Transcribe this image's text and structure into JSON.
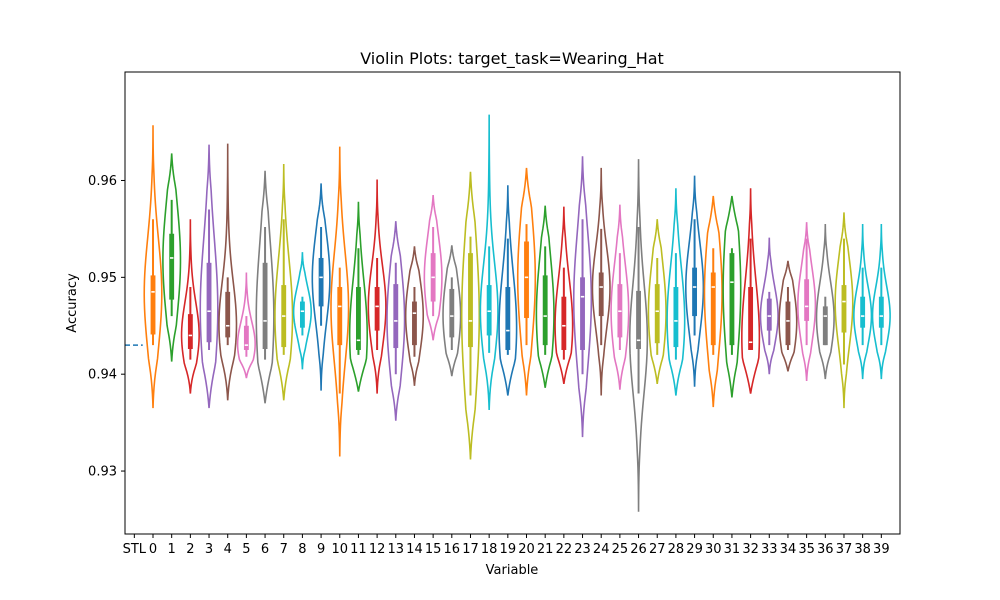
{
  "chart_data": {
    "type": "violin",
    "title": "Violin Plots: target_task=Wearing_Hat",
    "xlabel": "Variable",
    "ylabel": "Accuracy",
    "ylim": [
      0.9235,
      0.9712
    ],
    "yticks": [
      0.93,
      0.94,
      0.95,
      0.96
    ],
    "ytick_labels": [
      "0.93",
      "0.94",
      "0.95",
      "0.96"
    ],
    "grid": false,
    "baseline": {
      "label": "STL",
      "value": 0.943,
      "style": "dashed",
      "color": "#1f77b4"
    },
    "categories": [
      "STL",
      "0",
      "1",
      "2",
      "3",
      "4",
      "5",
      "6",
      "7",
      "8",
      "9",
      "10",
      "11",
      "12",
      "13",
      "14",
      "15",
      "16",
      "17",
      "18",
      "19",
      "20",
      "21",
      "22",
      "23",
      "24",
      "25",
      "26",
      "27",
      "28",
      "29",
      "30",
      "31",
      "32",
      "33",
      "34",
      "35",
      "36",
      "37",
      "38",
      "39"
    ],
    "palette": [
      "#ff7f0e",
      "#2ca02c",
      "#d62728",
      "#9467bd",
      "#8c564b",
      "#e377c2",
      "#7f7f7f",
      "#bcbd22",
      "#17becf",
      "#1f77b4"
    ],
    "series": [
      {
        "label": "0",
        "min": 0.9365,
        "max": 0.9657,
        "q1": 0.9441,
        "median": 0.9485,
        "q3": 0.9502,
        "w_low": 0.943,
        "w_high": 0.956,
        "color": "#ff7f0e"
      },
      {
        "label": "1",
        "min": 0.9413,
        "max": 0.9628,
        "q1": 0.9477,
        "median": 0.952,
        "q3": 0.9545,
        "w_low": 0.946,
        "w_high": 0.958,
        "color": "#2ca02c"
      },
      {
        "label": "2",
        "min": 0.938,
        "max": 0.956,
        "q1": 0.9426,
        "median": 0.944,
        "q3": 0.9462,
        "w_low": 0.9415,
        "w_high": 0.949,
        "color": "#d62728"
      },
      {
        "label": "3",
        "min": 0.9365,
        "max": 0.9637,
        "q1": 0.9433,
        "median": 0.9465,
        "q3": 0.9515,
        "w_low": 0.9425,
        "w_high": 0.957,
        "color": "#9467bd"
      },
      {
        "label": "4",
        "min": 0.9373,
        "max": 0.9638,
        "q1": 0.9438,
        "median": 0.945,
        "q3": 0.9485,
        "w_low": 0.943,
        "w_high": 0.95,
        "color": "#8c564b"
      },
      {
        "label": "5",
        "min": 0.9396,
        "max": 0.9505,
        "q1": 0.9425,
        "median": 0.943,
        "q3": 0.945,
        "w_low": 0.9418,
        "w_high": 0.946,
        "color": "#e377c2"
      },
      {
        "label": "6",
        "min": 0.937,
        "max": 0.961,
        "q1": 0.9426,
        "median": 0.9455,
        "q3": 0.9515,
        "w_low": 0.9415,
        "w_high": 0.9552,
        "color": "#7f7f7f"
      },
      {
        "label": "7",
        "min": 0.9373,
        "max": 0.9617,
        "q1": 0.9428,
        "median": 0.946,
        "q3": 0.9492,
        "w_low": 0.942,
        "w_high": 0.956,
        "color": "#bcbd22"
      },
      {
        "label": "8",
        "min": 0.9405,
        "max": 0.9526,
        "q1": 0.9448,
        "median": 0.9465,
        "q3": 0.9475,
        "w_low": 0.944,
        "w_high": 0.948,
        "color": "#17becf"
      },
      {
        "label": "9",
        "min": 0.9383,
        "max": 0.9597,
        "q1": 0.947,
        "median": 0.95,
        "q3": 0.952,
        "w_low": 0.945,
        "w_high": 0.9552,
        "color": "#1f77b4"
      },
      {
        "label": "10",
        "min": 0.9315,
        "max": 0.9635,
        "q1": 0.943,
        "median": 0.947,
        "q3": 0.949,
        "w_low": 0.938,
        "w_high": 0.951,
        "color": "#ff7f0e"
      },
      {
        "label": "11",
        "min": 0.9382,
        "max": 0.9578,
        "q1": 0.9425,
        "median": 0.9435,
        "q3": 0.949,
        "w_low": 0.942,
        "w_high": 0.953,
        "color": "#2ca02c"
      },
      {
        "label": "12",
        "min": 0.938,
        "max": 0.9601,
        "q1": 0.9445,
        "median": 0.947,
        "q3": 0.949,
        "w_low": 0.9425,
        "w_high": 0.952,
        "color": "#d62728"
      },
      {
        "label": "13",
        "min": 0.9352,
        "max": 0.9558,
        "q1": 0.9427,
        "median": 0.9455,
        "q3": 0.9493,
        "w_low": 0.94,
        "w_high": 0.9515,
        "color": "#9467bd"
      },
      {
        "label": "14",
        "min": 0.9388,
        "max": 0.9532,
        "q1": 0.943,
        "median": 0.9463,
        "q3": 0.9475,
        "w_low": 0.9418,
        "w_high": 0.949,
        "color": "#8c564b"
      },
      {
        "label": "15",
        "min": 0.9435,
        "max": 0.9585,
        "q1": 0.9475,
        "median": 0.95,
        "q3": 0.9525,
        "w_low": 0.946,
        "w_high": 0.9552,
        "color": "#e377c2"
      },
      {
        "label": "16",
        "min": 0.9398,
        "max": 0.9533,
        "q1": 0.9438,
        "median": 0.946,
        "q3": 0.9488,
        "w_low": 0.9425,
        "w_high": 0.95,
        "color": "#7f7f7f"
      },
      {
        "label": "17",
        "min": 0.9312,
        "max": 0.9609,
        "q1": 0.9428,
        "median": 0.9455,
        "q3": 0.9525,
        "w_low": 0.9378,
        "w_high": 0.9542,
        "color": "#bcbd22"
      },
      {
        "label": "18",
        "min": 0.9363,
        "max": 0.9668,
        "q1": 0.944,
        "median": 0.9465,
        "q3": 0.9492,
        "w_low": 0.9422,
        "w_high": 0.9532,
        "color": "#17becf"
      },
      {
        "label": "19",
        "min": 0.9378,
        "max": 0.9595,
        "q1": 0.9425,
        "median": 0.9445,
        "q3": 0.949,
        "w_low": 0.942,
        "w_high": 0.954,
        "color": "#1f77b4"
      },
      {
        "label": "20",
        "min": 0.9378,
        "max": 0.9613,
        "q1": 0.9458,
        "median": 0.95,
        "q3": 0.9537,
        "w_low": 0.943,
        "w_high": 0.9555,
        "color": "#ff7f0e"
      },
      {
        "label": "21",
        "min": 0.9386,
        "max": 0.9574,
        "q1": 0.943,
        "median": 0.946,
        "q3": 0.9502,
        "w_low": 0.942,
        "w_high": 0.9532,
        "color": "#2ca02c"
      },
      {
        "label": "22",
        "min": 0.939,
        "max": 0.9573,
        "q1": 0.9425,
        "median": 0.945,
        "q3": 0.948,
        "w_low": 0.9415,
        "w_high": 0.951,
        "color": "#d62728"
      },
      {
        "label": "23",
        "min": 0.9335,
        "max": 0.9625,
        "q1": 0.9425,
        "median": 0.948,
        "q3": 0.95,
        "w_low": 0.94,
        "w_high": 0.956,
        "color": "#9467bd"
      },
      {
        "label": "24",
        "min": 0.9378,
        "max": 0.9613,
        "q1": 0.946,
        "median": 0.949,
        "q3": 0.9505,
        "w_low": 0.943,
        "w_high": 0.955,
        "color": "#8c564b"
      },
      {
        "label": "25",
        "min": 0.9384,
        "max": 0.9575,
        "q1": 0.9438,
        "median": 0.9465,
        "q3": 0.9493,
        "w_low": 0.9425,
        "w_high": 0.9525,
        "color": "#e377c2"
      },
      {
        "label": "26",
        "min": 0.9258,
        "max": 0.9622,
        "q1": 0.9426,
        "median": 0.9435,
        "q3": 0.9486,
        "w_low": 0.938,
        "w_high": 0.9552,
        "color": "#7f7f7f"
      },
      {
        "label": "27",
        "min": 0.939,
        "max": 0.956,
        "q1": 0.9432,
        "median": 0.9465,
        "q3": 0.9493,
        "w_low": 0.942,
        "w_high": 0.952,
        "color": "#bcbd22"
      },
      {
        "label": "28",
        "min": 0.9378,
        "max": 0.9592,
        "q1": 0.9428,
        "median": 0.9455,
        "q3": 0.949,
        "w_low": 0.9415,
        "w_high": 0.9525,
        "color": "#17becf"
      },
      {
        "label": "29",
        "min": 0.9387,
        "max": 0.9605,
        "q1": 0.946,
        "median": 0.949,
        "q3": 0.951,
        "w_low": 0.944,
        "w_high": 0.956,
        "color": "#1f77b4"
      },
      {
        "label": "30",
        "min": 0.9366,
        "max": 0.9584,
        "q1": 0.943,
        "median": 0.949,
        "q3": 0.9505,
        "w_low": 0.942,
        "w_high": 0.953,
        "color": "#ff7f0e"
      },
      {
        "label": "31",
        "min": 0.9376,
        "max": 0.9584,
        "q1": 0.943,
        "median": 0.9495,
        "q3": 0.9525,
        "w_low": 0.942,
        "w_high": 0.953,
        "color": "#2ca02c"
      },
      {
        "label": "32",
        "min": 0.938,
        "max": 0.9592,
        "q1": 0.9425,
        "median": 0.9433,
        "q3": 0.949,
        "w_low": 0.9425,
        "w_high": 0.954,
        "color": "#d62728"
      },
      {
        "label": "33",
        "min": 0.94,
        "max": 0.9541,
        "q1": 0.9445,
        "median": 0.946,
        "q3": 0.9478,
        "w_low": 0.943,
        "w_high": 0.9485,
        "color": "#9467bd"
      },
      {
        "label": "34",
        "min": 0.9403,
        "max": 0.9517,
        "q1": 0.943,
        "median": 0.9455,
        "q3": 0.9475,
        "w_low": 0.9425,
        "w_high": 0.949,
        "color": "#8c564b"
      },
      {
        "label": "35",
        "min": 0.9393,
        "max": 0.9557,
        "q1": 0.9455,
        "median": 0.947,
        "q3": 0.9498,
        "w_low": 0.943,
        "w_high": 0.954,
        "color": "#e377c2"
      },
      {
        "label": "36",
        "min": 0.9395,
        "max": 0.9555,
        "q1": 0.943,
        "median": 0.946,
        "q3": 0.947,
        "w_low": 0.943,
        "w_high": 0.948,
        "color": "#7f7f7f"
      },
      {
        "label": "37",
        "min": 0.9365,
        "max": 0.9567,
        "q1": 0.9443,
        "median": 0.9475,
        "q3": 0.9492,
        "w_low": 0.941,
        "w_high": 0.954,
        "color": "#bcbd22"
      },
      {
        "label": "38",
        "min": 0.9395,
        "max": 0.9555,
        "q1": 0.9448,
        "median": 0.946,
        "q3": 0.948,
        "w_low": 0.943,
        "w_high": 0.951,
        "color": "#17becf"
      },
      {
        "label": "39",
        "min": 0.9395,
        "max": 0.9555,
        "q1": 0.9448,
        "median": 0.946,
        "q3": 0.948,
        "w_low": 0.943,
        "w_high": 0.951,
        "color": "#17becf"
      }
    ]
  }
}
